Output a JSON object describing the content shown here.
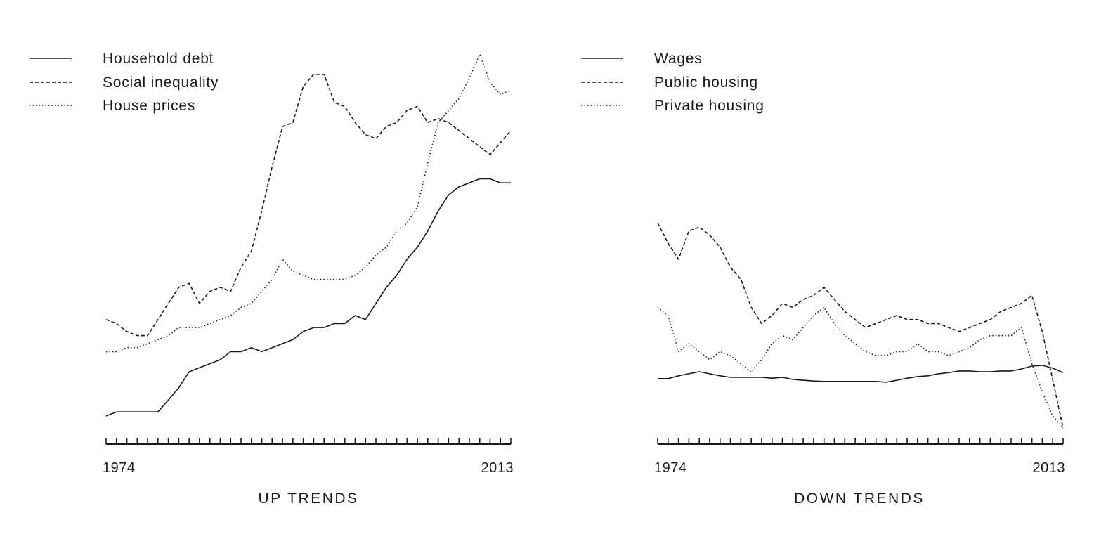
{
  "chart_data": [
    {
      "type": "line",
      "title": "UP TRENDS",
      "x": [
        1974,
        1975,
        1976,
        1977,
        1978,
        1979,
        1980,
        1981,
        1982,
        1983,
        1984,
        1985,
        1986,
        1987,
        1988,
        1989,
        1990,
        1991,
        1992,
        1993,
        1994,
        1995,
        1996,
        1997,
        1998,
        1999,
        2000,
        2001,
        2002,
        2003,
        2004,
        2005,
        2006,
        2007,
        2008,
        2009,
        2010,
        2011,
        2012,
        2013
      ],
      "xtick_labels": [
        "1974",
        "2013"
      ],
      "ylim": [
        0,
        100
      ],
      "legend": "top-left",
      "grid": false,
      "series": [
        {
          "name": "Household debt",
          "style": "solid",
          "values": [
            7,
            8,
            8,
            8,
            8,
            8,
            11,
            14,
            18,
            19,
            20,
            21,
            23,
            23,
            24,
            23,
            24,
            25,
            26,
            28,
            29,
            29,
            30,
            30,
            32,
            31,
            35,
            39,
            42,
            46,
            49,
            53,
            58,
            62,
            64,
            65,
            66,
            66,
            65,
            65
          ]
        },
        {
          "name": "Social inequality",
          "style": "dashed",
          "values": [
            31,
            30,
            28,
            27,
            27,
            31,
            35,
            39,
            40,
            35,
            38,
            39,
            38,
            44,
            48,
            58,
            69,
            79,
            80,
            89,
            92,
            92,
            85,
            84,
            80,
            77,
            76,
            79,
            80,
            83,
            84,
            80,
            81,
            80,
            78,
            76,
            74,
            72,
            75,
            78
          ]
        },
        {
          "name": "House prices",
          "style": "dotted",
          "values": [
            23,
            23,
            24,
            24,
            25,
            26,
            27,
            29,
            29,
            29,
            30,
            31,
            32,
            34,
            35,
            38,
            41,
            46,
            43,
            42,
            41,
            41,
            41,
            41,
            42,
            44,
            47,
            49,
            53,
            55,
            59,
            70,
            80,
            83,
            86,
            91,
            97,
            90,
            87,
            88
          ]
        }
      ]
    },
    {
      "type": "line",
      "title": "DOWN TRENDS",
      "x": [
        1974,
        1975,
        1976,
        1977,
        1978,
        1979,
        1980,
        1981,
        1982,
        1983,
        1984,
        1985,
        1986,
        1987,
        1988,
        1989,
        1990,
        1991,
        1992,
        1993,
        1994,
        1995,
        1996,
        1997,
        1998,
        1999,
        2000,
        2001,
        2002,
        2003,
        2004,
        2005,
        2006,
        2007,
        2008,
        2009,
        2010,
        2011,
        2012,
        2013
      ],
      "xtick_labels": [
        "1974",
        "2013"
      ],
      "ylim": [
        0,
        100
      ],
      "legend": "top-left",
      "grid": false,
      "series": [
        {
          "name": "Wages",
          "style": "solid",
          "values": [
            16.3,
            16.3,
            17.0,
            17.5,
            18.0,
            17.5,
            17.0,
            16.6,
            16.6,
            16.6,
            16.6,
            16.4,
            16.6,
            16.1,
            15.9,
            15.7,
            15.6,
            15.6,
            15.6,
            15.6,
            15.6,
            15.6,
            15.4,
            15.9,
            16.4,
            16.8,
            17.0,
            17.5,
            17.8,
            18.2,
            18.2,
            18.0,
            18.0,
            18.2,
            18.2,
            18.7,
            19.4,
            19.6,
            18.9,
            17.8
          ]
        },
        {
          "name": "Public housing",
          "style": "dashed",
          "values": [
            55,
            50,
            46,
            53,
            54,
            52,
            49,
            44,
            41,
            34,
            30,
            32,
            35,
            34,
            36,
            37,
            39,
            36,
            33,
            31,
            29,
            30,
            31,
            32,
            31,
            31,
            30,
            30,
            29,
            28,
            29,
            30,
            31,
            33,
            34,
            35,
            37,
            28,
            16,
            4
          ]
        },
        {
          "name": "Private housing",
          "style": "dotted",
          "values": [
            34,
            32,
            23,
            25,
            23,
            21,
            23,
            22,
            20,
            18,
            21,
            25,
            27,
            26,
            29,
            32,
            34,
            30,
            27,
            25,
            23,
            22,
            22,
            23,
            23,
            25,
            23,
            23,
            22,
            23,
            24,
            26,
            27,
            27,
            27,
            29,
            20,
            13,
            7,
            4
          ]
        }
      ]
    }
  ],
  "colors": {
    "line": "#1a1a1a",
    "background": "#ffffff"
  }
}
